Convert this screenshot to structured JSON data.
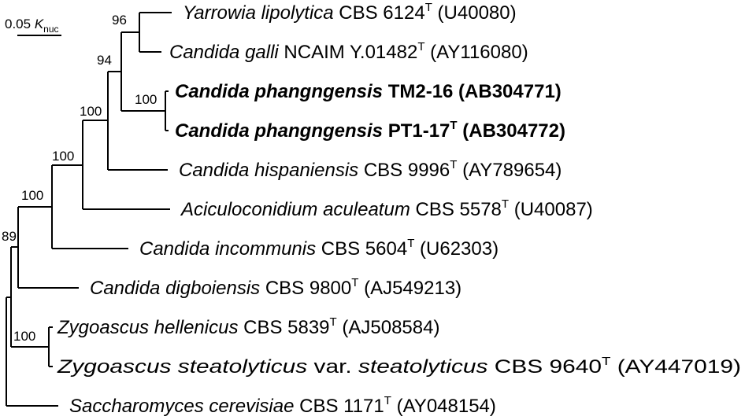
{
  "scale": {
    "value": "0.05",
    "k": "K",
    "sub": "nuc"
  },
  "taxa": [
    {
      "italic": "Yarrowia lipolytica",
      "strain": " CBS 6124",
      "sup": "T",
      "acc": " (U40080)",
      "bold": false
    },
    {
      "italic": "Candida galli",
      "strain": " NCAIM Y.01482",
      "sup": "T",
      "acc": " (AY116080)",
      "bold": false
    },
    {
      "italic": "Candida phangngensis",
      "strain": " TM2-16 (AB304771)",
      "sup": "",
      "acc": "",
      "bold": true
    },
    {
      "italic": "Candida phangngensis",
      "strain": " PT1-17",
      "sup": "T",
      "acc": " (AB304772)",
      "bold": true
    },
    {
      "italic": "Candida hispaniensis",
      "strain": " CBS 9996",
      "sup": "T",
      "acc": " (AY789654)",
      "bold": false
    },
    {
      "italic": "Aciculoconidium aculeatum",
      "strain": " CBS 5578",
      "sup": "T",
      "acc": " (U40087)",
      "bold": false
    },
    {
      "italic": "Candida incommunis",
      "strain": " CBS 5604",
      "sup": "T",
      "acc": " (U62303)",
      "bold": false
    },
    {
      "italic": "Candida digboiensis",
      "strain": " CBS 9800",
      "sup": "T",
      "acc": " (AJ549213)",
      "bold": false
    },
    {
      "italic": "Zygoascus hellenicus",
      "strain": " CBS 5839",
      "sup": "T",
      "acc": " (AJ508584)",
      "bold": false
    },
    {
      "italic": "Zygoascus steatolyticus",
      "strain": " var. ",
      "strain_italic": "steatolyticus",
      "strain2": " CBS 9640",
      "sup": "T",
      "acc": " (AY447019)",
      "bold": false
    },
    {
      "italic": "Saccharomyces cerevisiae",
      "strain": " CBS 1171",
      "sup": "T",
      "acc": " (AY048154)",
      "bold": false
    }
  ],
  "bootstrap": [
    "96",
    "94",
    "100",
    "100",
    "100",
    "100",
    "89",
    "100"
  ]
}
